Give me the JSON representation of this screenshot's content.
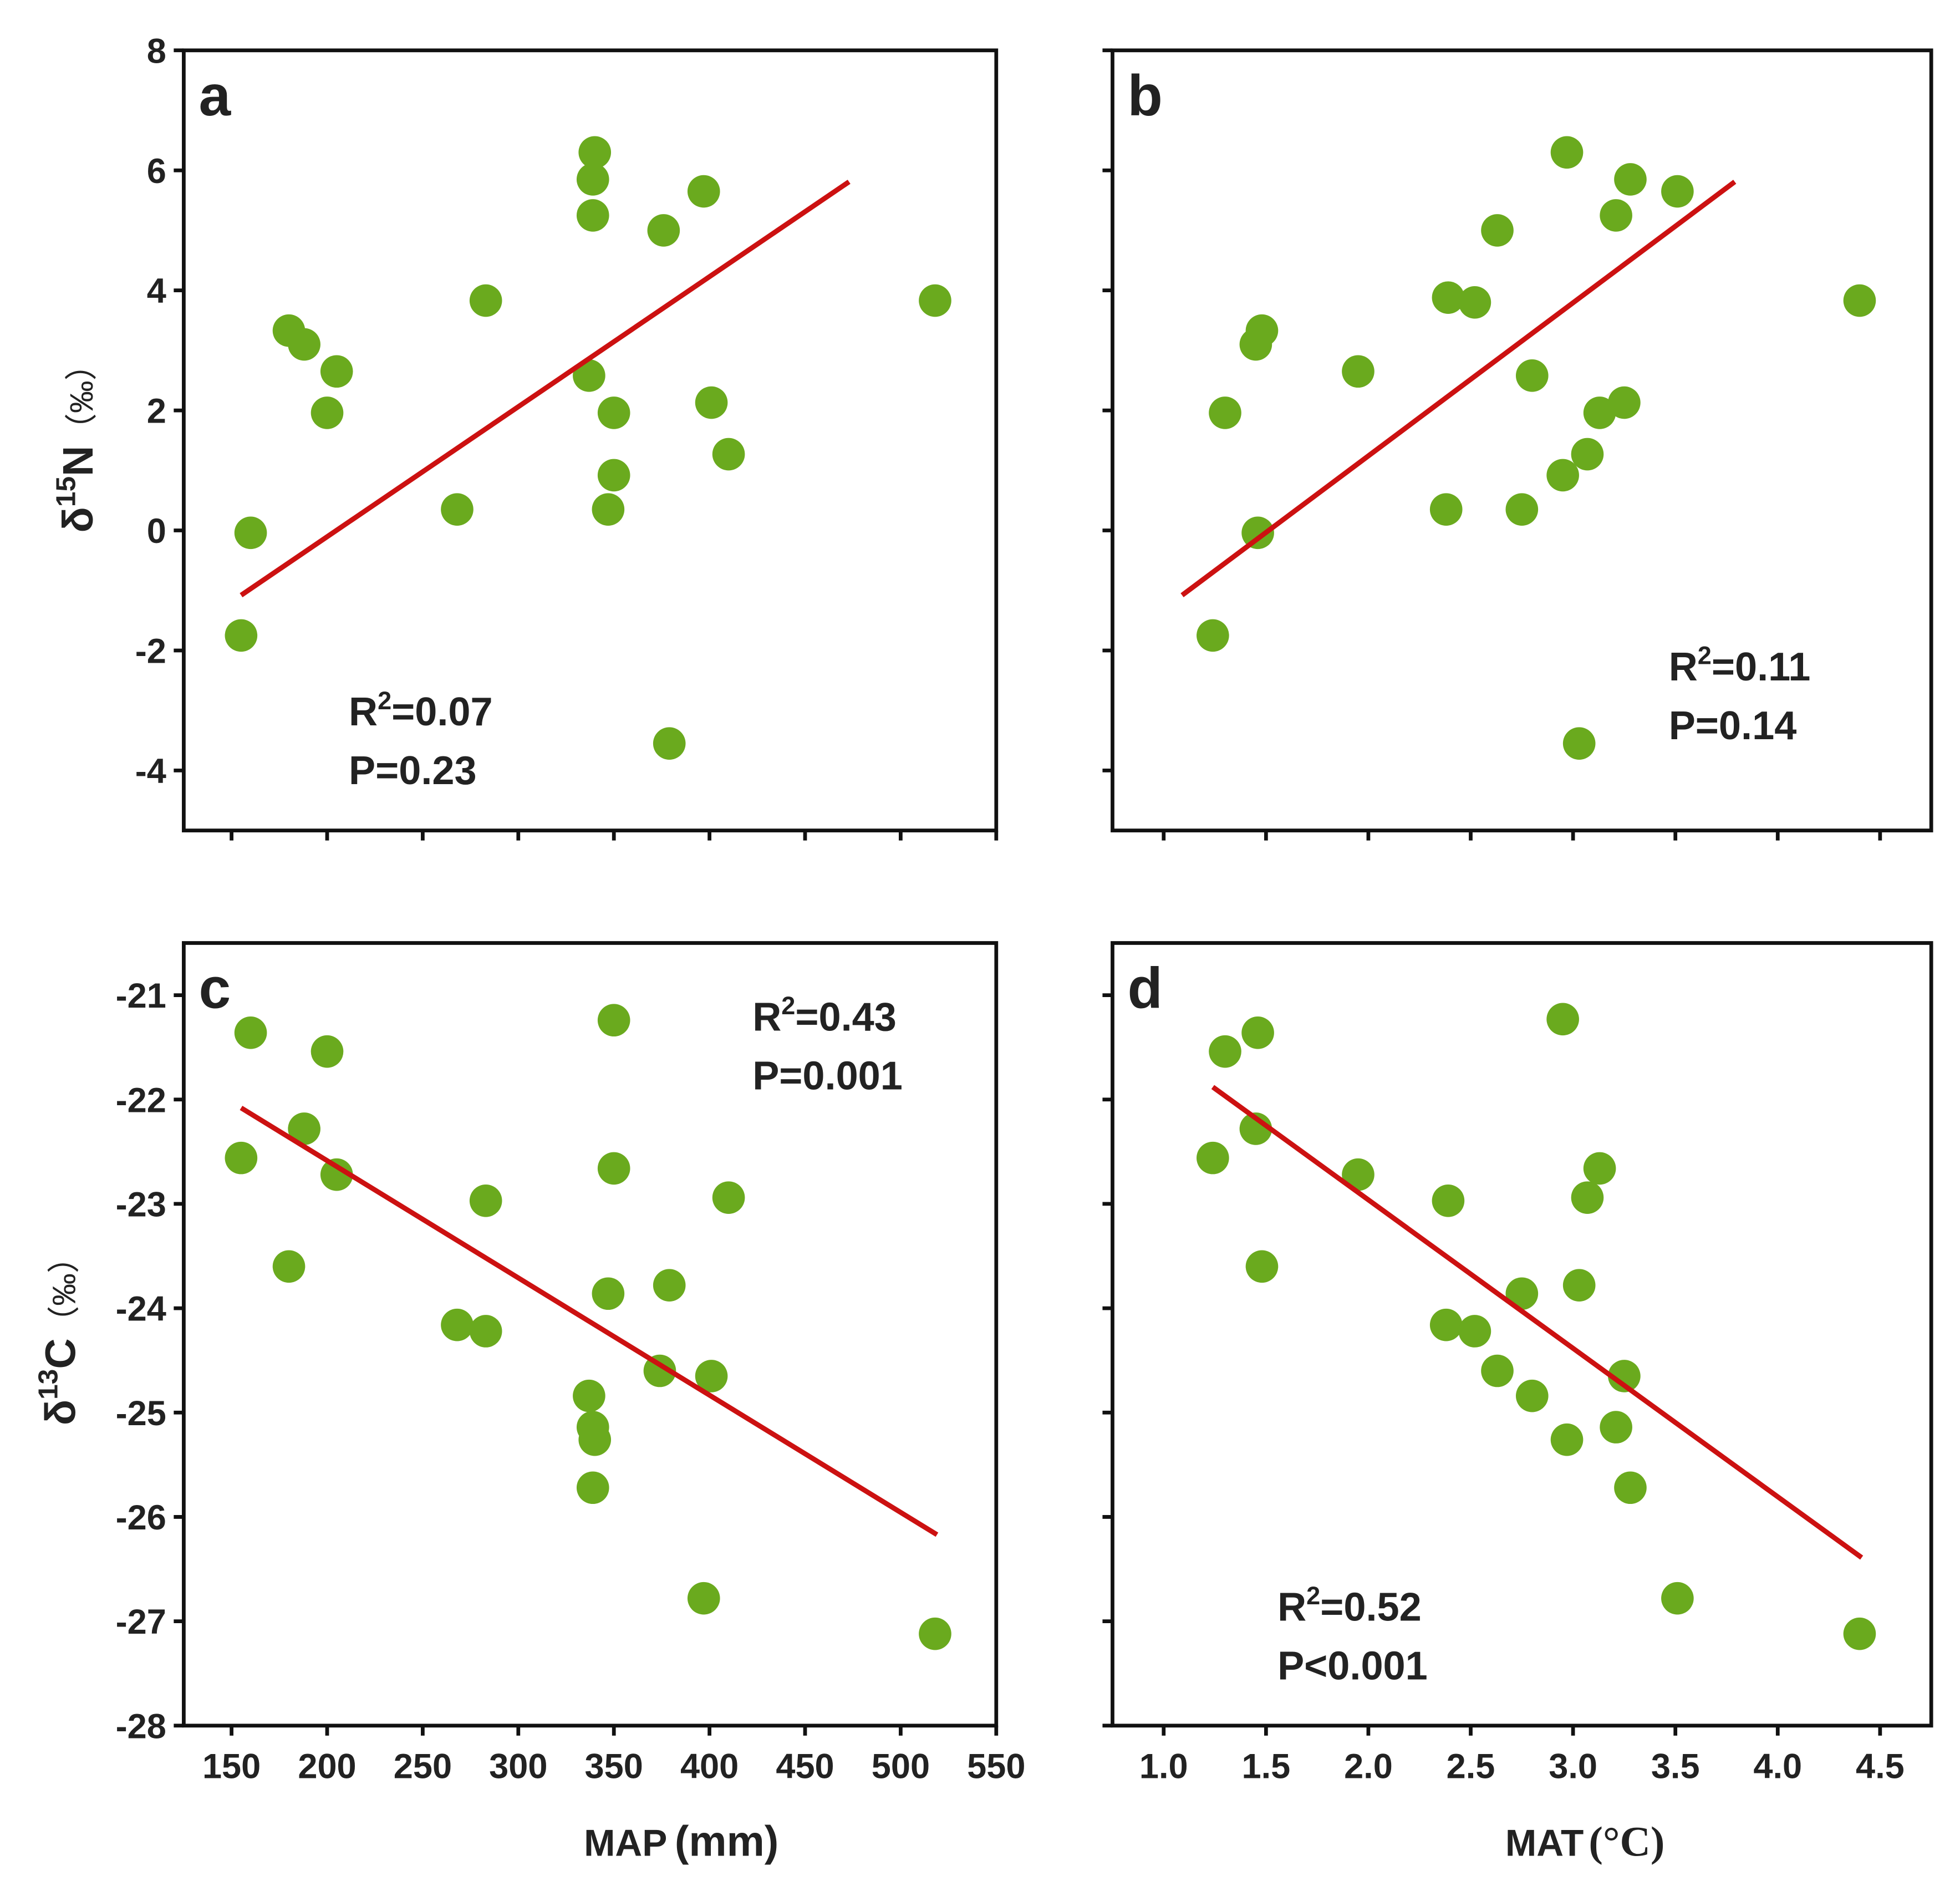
{
  "colors": {
    "point": "#6aaa1e",
    "line": "#cc1111",
    "frame": "#111111"
  },
  "x_axis_labels": {
    "left": {
      "main": "MAP",
      "unit": "(mm)"
    },
    "right": {
      "main": "MAT",
      "unit": "(°C)"
    }
  },
  "y_axis_labels": {
    "top": {
      "delta": "δ",
      "sup": "15",
      "el": "N",
      "unit": "（‰）"
    },
    "bottom": {
      "delta": "δ",
      "sup": "13",
      "el": "C",
      "unit": "（‰）"
    }
  },
  "chart_data": [
    {
      "type": "scatter",
      "panel": "a",
      "xlabel": "MAP (mm)",
      "ylabel": "δ15N (‰)",
      "xlim": [
        125,
        550
      ],
      "ylim": [
        -5,
        8
      ],
      "xticks": [
        150,
        200,
        250,
        300,
        350,
        400,
        450,
        500,
        550
      ],
      "yticks": [
        -4,
        -2,
        0,
        2,
        4,
        6,
        8
      ],
      "show_xticklabels": false,
      "show_yticklabels": true,
      "annotation": {
        "r2_prefix": "R",
        "r2_sup": "2",
        "r2_value": "=0.07",
        "p": "P=0.23",
        "position": "bottom-left"
      },
      "fit": {
        "x": [
          155,
          473
        ],
        "y": [
          -1.08,
          5.81
        ]
      },
      "points": [
        [
          155,
          -1.75
        ],
        [
          160,
          -0.04
        ],
        [
          180,
          3.33
        ],
        [
          188,
          3.1
        ],
        [
          205,
          2.65
        ],
        [
          200,
          1.96
        ],
        [
          268,
          0.35
        ],
        [
          283,
          3.83
        ],
        [
          340,
          6.3
        ],
        [
          339,
          5.85
        ],
        [
          339,
          5.25
        ],
        [
          376,
          5.0
        ],
        [
          397,
          5.65
        ],
        [
          337,
          2.58
        ],
        [
          350,
          1.96
        ],
        [
          350,
          0.92
        ],
        [
          347,
          0.35
        ],
        [
          401,
          2.13
        ],
        [
          410,
          1.27
        ],
        [
          379,
          -3.55
        ],
        [
          518,
          3.83
        ]
      ]
    },
    {
      "type": "scatter",
      "panel": "b",
      "xlabel": "MAT (°C)",
      "ylabel": "δ15N (‰)",
      "xlim": [
        0.75,
        4.75
      ],
      "ylim": [
        -5,
        8
      ],
      "xticks": [
        1.0,
        1.5,
        2.0,
        2.5,
        3.0,
        3.5,
        4.0,
        4.5
      ],
      "yticks": [
        -4,
        -2,
        0,
        2,
        4,
        6,
        8
      ],
      "show_xticklabels": false,
      "show_yticklabels": false,
      "annotation": {
        "r2_prefix": "R",
        "r2_sup": "2",
        "r2_value": "=0.11",
        "p": "P=0.14",
        "position": "bottom-right"
      },
      "fit": {
        "x": [
          1.09,
          3.79
        ],
        "y": [
          -1.08,
          5.81
        ]
      },
      "points": [
        [
          1.24,
          -1.75
        ],
        [
          1.46,
          -0.04
        ],
        [
          1.3,
          1.96
        ],
        [
          1.45,
          3.1
        ],
        [
          1.48,
          3.33
        ],
        [
          1.95,
          2.65
        ],
        [
          2.38,
          0.35
        ],
        [
          2.39,
          3.88
        ],
        [
          2.52,
          3.8
        ],
        [
          2.63,
          5.0
        ],
        [
          2.8,
          2.58
        ],
        [
          2.75,
          0.35
        ],
        [
          2.97,
          6.3
        ],
        [
          2.95,
          0.92
        ],
        [
          3.07,
          1.27
        ],
        [
          3.13,
          1.96
        ],
        [
          3.25,
          2.13
        ],
        [
          3.21,
          5.25
        ],
        [
          3.28,
          5.85
        ],
        [
          3.51,
          5.65
        ],
        [
          3.03,
          -3.55
        ],
        [
          4.4,
          3.83
        ]
      ]
    },
    {
      "type": "scatter",
      "panel": "c",
      "xlabel": "MAP (mm)",
      "ylabel": "δ13C (‰)",
      "xlim": [
        125,
        550
      ],
      "ylim": [
        -28,
        -20.5
      ],
      "xticks": [
        150,
        200,
        250,
        300,
        350,
        400,
        450,
        500,
        550
      ],
      "yticks": [
        -28,
        -27,
        -26,
        -25,
        -24,
        -23,
        -22,
        -21
      ],
      "show_xticklabels": true,
      "show_yticklabels": true,
      "annotation": {
        "r2_prefix": "R",
        "r2_sup": "2",
        "r2_value": "=0.43",
        "p": "P=0.001",
        "position": "top-right"
      },
      "fit": {
        "x": [
          155,
          519
        ],
        "y": [
          -22.08,
          -26.17
        ]
      },
      "points": [
        [
          160,
          -21.36
        ],
        [
          200,
          -21.54
        ],
        [
          155,
          -22.56
        ],
        [
          188,
          -22.28
        ],
        [
          205,
          -22.72
        ],
        [
          180,
          -23.6
        ],
        [
          283,
          -22.97
        ],
        [
          268,
          -24.16
        ],
        [
          283,
          -24.22
        ],
        [
          350,
          -21.24
        ],
        [
          350,
          -22.66
        ],
        [
          347,
          -23.86
        ],
        [
          379,
          -23.78
        ],
        [
          410,
          -22.94
        ],
        [
          374,
          -24.6
        ],
        [
          401,
          -24.65
        ],
        [
          337,
          -24.84
        ],
        [
          339,
          -25.14
        ],
        [
          340,
          -25.26
        ],
        [
          339,
          -25.72
        ],
        [
          397,
          -26.78
        ],
        [
          518,
          -27.12
        ]
      ]
    },
    {
      "type": "scatter",
      "panel": "d",
      "xlabel": "MAT (°C)",
      "ylabel": "δ13C (‰)",
      "xlim": [
        0.75,
        4.75
      ],
      "ylim": [
        -28,
        -20.5
      ],
      "xticks": [
        1.0,
        1.5,
        2.0,
        2.5,
        3.0,
        3.5,
        4.0,
        4.5
      ],
      "yticks": [
        -28,
        -27,
        -26,
        -25,
        -24,
        -23,
        -22,
        -21
      ],
      "show_xticklabels": true,
      "show_yticklabels": false,
      "annotation": {
        "r2_prefix": "R",
        "r2_sup": "2",
        "r2_value": "=0.52",
        "p": "P<0.001",
        "position": "bottom-left"
      },
      "fit": {
        "x": [
          1.24,
          4.41
        ],
        "y": [
          -21.88,
          -26.39
        ]
      },
      "points": [
        [
          2.95,
          -21.23
        ],
        [
          1.3,
          -21.54
        ],
        [
          1.46,
          -21.36
        ],
        [
          1.24,
          -22.56
        ],
        [
          1.45,
          -22.28
        ],
        [
          1.48,
          -23.6
        ],
        [
          1.95,
          -22.72
        ],
        [
          2.39,
          -22.97
        ],
        [
          3.13,
          -22.66
        ],
        [
          3.07,
          -22.94
        ],
        [
          2.75,
          -23.86
        ],
        [
          3.03,
          -23.78
        ],
        [
          2.38,
          -24.16
        ],
        [
          2.52,
          -24.22
        ],
        [
          2.63,
          -24.6
        ],
        [
          2.8,
          -24.84
        ],
        [
          3.25,
          -24.65
        ],
        [
          3.21,
          -25.14
        ],
        [
          2.97,
          -25.26
        ],
        [
          3.28,
          -25.72
        ],
        [
          3.51,
          -26.78
        ],
        [
          4.4,
          -27.12
        ]
      ]
    }
  ]
}
